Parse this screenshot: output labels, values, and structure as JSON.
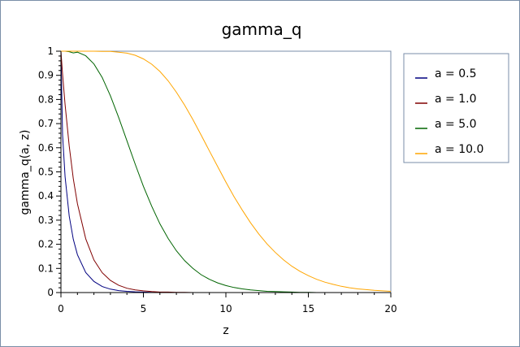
{
  "chart_data": {
    "type": "line",
    "title": "gamma_q",
    "xlabel": "z",
    "ylabel": "gamma_q(a, z)",
    "xlim": [
      0,
      20
    ],
    "ylim": [
      0,
      1
    ],
    "x_ticks": [
      "0",
      "5",
      "10",
      "15",
      "20"
    ],
    "y_ticks": [
      "0",
      "0.1",
      "0.2",
      "0.3",
      "0.4",
      "0.5",
      "0.6",
      "0.7",
      "0.8",
      "0.9",
      "1"
    ],
    "x": [
      0,
      0.1,
      0.25,
      0.5,
      0.75,
      1,
      1.5,
      2,
      2.5,
      3,
      3.5,
      4,
      4.5,
      5,
      5.5,
      6,
      6.5,
      7,
      7.5,
      8,
      8.5,
      9,
      9.5,
      10,
      10.5,
      11,
      11.5,
      12,
      12.5,
      13,
      13.5,
      14,
      14.5,
      15,
      15.5,
      16,
      16.5,
      17,
      17.5,
      18,
      18.5,
      19,
      19.5,
      20
    ],
    "series": [
      {
        "name": "a = 0.5",
        "color": "#000080",
        "values": [
          1,
          0.655,
          0.48,
          0.317,
          0.221,
          0.157,
          0.083,
          0.046,
          0.025,
          0.014,
          0.008,
          0.005,
          0.003,
          0.002,
          0.001,
          0.001,
          0,
          0,
          0,
          0,
          0,
          0,
          0,
          0,
          0,
          0,
          0,
          0,
          0,
          0,
          0,
          0,
          0,
          0,
          0,
          0,
          0,
          0,
          0,
          0,
          0,
          0,
          0,
          0
        ]
      },
      {
        "name": "a = 1.0",
        "color": "#800000",
        "values": [
          1,
          0.905,
          0.779,
          0.607,
          0.472,
          0.368,
          0.223,
          0.135,
          0.082,
          0.05,
          0.03,
          0.018,
          0.011,
          0.007,
          0.004,
          0.002,
          0.002,
          0.001,
          0.001,
          0,
          0,
          0,
          0,
          0,
          0,
          0,
          0,
          0,
          0,
          0,
          0,
          0,
          0,
          0,
          0,
          0,
          0,
          0,
          0,
          0,
          0,
          0,
          0,
          0
        ]
      },
      {
        "name": "a = 5.0",
        "color": "#006400",
        "values": [
          1,
          1,
          1,
          0.998,
          0.993,
          0.996,
          0.981,
          0.947,
          0.891,
          0.815,
          0.725,
          0.629,
          0.532,
          0.44,
          0.358,
          0.285,
          0.224,
          0.173,
          0.132,
          0.1,
          0.074,
          0.055,
          0.04,
          0.029,
          0.021,
          0.015,
          0.011,
          0.008,
          0.005,
          0.004,
          0.003,
          0.002,
          0.001,
          0.001,
          0,
          0,
          0,
          0,
          0,
          0,
          0,
          0,
          0,
          0
        ]
      },
      {
        "name": "a = 10.0",
        "color": "#ffa500",
        "values": [
          1,
          1,
          1,
          1,
          1,
          1,
          1,
          1,
          0.999,
          0.999,
          0.996,
          0.992,
          0.983,
          0.968,
          0.946,
          0.916,
          0.877,
          0.83,
          0.776,
          0.717,
          0.653,
          0.587,
          0.522,
          0.458,
          0.397,
          0.341,
          0.289,
          0.242,
          0.201,
          0.166,
          0.135,
          0.109,
          0.088,
          0.07,
          0.055,
          0.043,
          0.034,
          0.026,
          0.02,
          0.015,
          0.012,
          0.009,
          0.007,
          0.005
        ]
      }
    ],
    "legend": "right",
    "grid": false,
    "plot_background": "#ffffff",
    "frame_color": "#7a8ea8"
  }
}
